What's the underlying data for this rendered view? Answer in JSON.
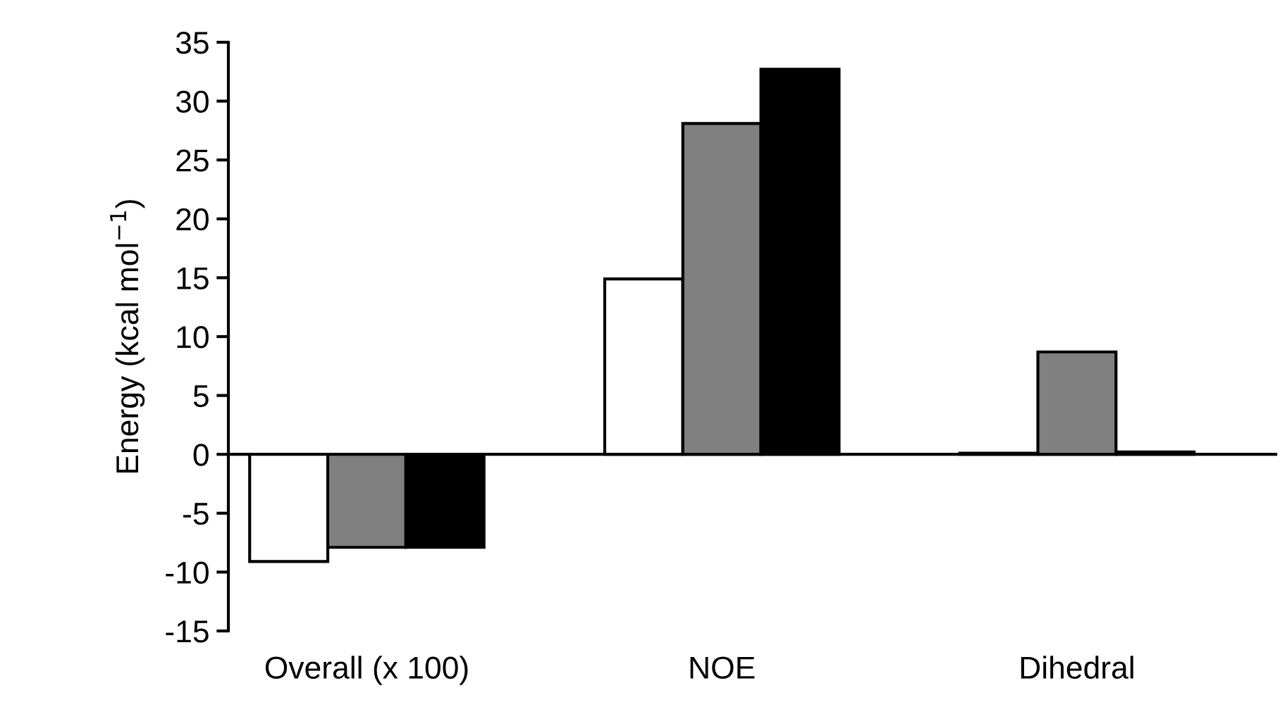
{
  "chart_data": {
    "type": "bar",
    "ylabel": "Energy (kcal mol$^{−1}$)",
    "categories": [
      "Overall (x 100)",
      "NOE",
      "Dihedral"
    ],
    "series": [
      {
        "color": "#ffffff",
        "values": [
          -9.1,
          14.9,
          0.1
        ]
      },
      {
        "color": "#808080",
        "values": [
          -7.9,
          28.1,
          8.7
        ]
      },
      {
        "color": "#000000",
        "values": [
          -7.9,
          32.7,
          0.2
        ]
      }
    ],
    "ylim": [
      -15,
      35
    ],
    "yticks": [
      {
        "value": -15,
        "label": "-15"
      },
      {
        "value": -10,
        "label": "-10"
      },
      {
        "value": -5,
        "label": "-5"
      },
      0,
      5,
      10,
      15,
      20,
      25,
      30,
      35
    ],
    "legend": false
  }
}
